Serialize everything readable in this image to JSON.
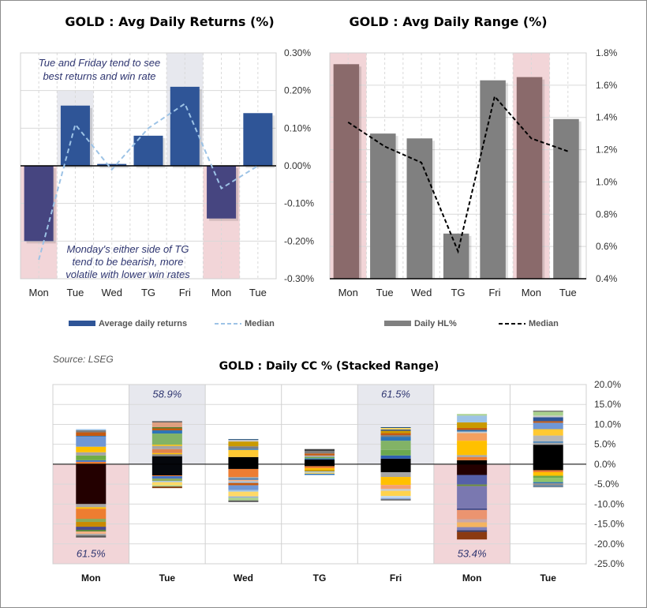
{
  "chart_data": [
    {
      "type": "bar",
      "title": "GOLD : Avg Daily Returns (%)",
      "categories": [
        "Mon",
        "Tue",
        "Wed",
        "TG",
        "Fri",
        "Mon",
        "Tue"
      ],
      "ylim": [
        -0.3,
        0.3
      ],
      "yticks": [
        "0.30%",
        "0.20%",
        "0.10%",
        "0.00%",
        "-0.10%",
        "-0.20%",
        "-0.30%"
      ],
      "ytick_values": [
        0.3,
        0.2,
        0.1,
        0.0,
        -0.1,
        -0.2,
        -0.3
      ],
      "grid": true,
      "legend_placement": "bottom",
      "series": [
        {
          "name": "Average daily returns",
          "type": "bar",
          "values": [
            -0.2,
            0.16,
            0.005,
            0.08,
            0.21,
            -0.14,
            0.14
          ],
          "color": "#2f5597",
          "negative_color": "#464580"
        },
        {
          "name": "Median",
          "type": "line",
          "style": "dashed",
          "values": [
            -0.25,
            0.11,
            -0.01,
            0.1,
            0.165,
            -0.06,
            0.0
          ],
          "color": "#9dc3e6"
        }
      ],
      "highlights": [
        {
          "category_index": 0,
          "range": [
            -0.3,
            0
          ],
          "color": "#f2d5d8"
        },
        {
          "category_index": 1,
          "range": [
            0,
            0.2
          ],
          "color": "#e7e8ee"
        },
        {
          "category_index": 4,
          "range": [
            0,
            0.3
          ],
          "color": "#e7e8ee"
        },
        {
          "category_index": 5,
          "range": [
            -0.3,
            0
          ],
          "color": "#f2d5d8"
        }
      ],
      "annotations": [
        [
          "Tue and Friday tend to see",
          "best returns and win rate"
        ],
        [
          "Monday's either side of TG",
          "tend to be bearish, more",
          "volatile with lower win rates"
        ]
      ]
    },
    {
      "type": "bar",
      "title": "GOLD : Avg Daily Range (%)",
      "categories": [
        "Mon",
        "Tue",
        "Wed",
        "TG",
        "Fri",
        "Mon",
        "Tue"
      ],
      "ylim": [
        0.4,
        1.8
      ],
      "yticks": [
        "1.8%",
        "1.6%",
        "1.4%",
        "1.2%",
        "1.0%",
        "0.8%",
        "0.6%",
        "0.4%"
      ],
      "ytick_values": [
        1.8,
        1.6,
        1.4,
        1.2,
        1.0,
        0.8,
        0.6,
        0.4
      ],
      "grid": true,
      "legend_placement": "bottom",
      "series": [
        {
          "name": "Daily HL%",
          "type": "bar",
          "values": [
            1.73,
            1.3,
            1.27,
            0.68,
            1.63,
            1.65,
            1.39
          ],
          "color": "#808080",
          "highlight_color": "#8a6a6b"
        },
        {
          "name": "Median",
          "type": "line",
          "style": "dashed",
          "values": [
            1.37,
            1.22,
            1.12,
            0.57,
            1.53,
            1.27,
            1.19
          ],
          "color": "#000000"
        }
      ],
      "highlights": [
        {
          "category_index": 0,
          "range": [
            0.4,
            1.8
          ],
          "color": "#f2d5d8"
        },
        {
          "category_index": 5,
          "range": [
            0.4,
            1.8
          ],
          "color": "#f2d5d8"
        }
      ]
    },
    {
      "type": "bar",
      "stacked": true,
      "title": "GOLD : Daily CC % (Stacked Range)",
      "source": "Source: LSEG",
      "categories": [
        "Mon",
        "Tue",
        "Wed",
        "TG",
        "Fri",
        "Mon",
        "Tue"
      ],
      "ylim": [
        -25,
        20
      ],
      "yticks": [
        "20.0%",
        "15.0%",
        "10.0%",
        "5.0%",
        "0.0%",
        "-5.0%",
        "-10.0%",
        "-15.0%",
        "-20.0%",
        "-25.0%"
      ],
      "ytick_values": [
        20,
        15,
        10,
        5,
        0,
        -5,
        -10,
        -15,
        -20,
        -25
      ],
      "grid": true,
      "highlights": [
        {
          "category_index": 0,
          "range": [
            -25,
            0
          ],
          "color": "#f2d5d8",
          "label": "61.5%"
        },
        {
          "category_index": 1,
          "range": [
            0,
            20
          ],
          "color": "#e7e8ee",
          "label": "58.9%"
        },
        {
          "category_index": 4,
          "range": [
            0,
            20
          ],
          "color": "#e7e8ee",
          "label": "61.5%"
        },
        {
          "category_index": 5,
          "range": [
            -25,
            0
          ],
          "color": "#f2d5d8",
          "label": "53.4%"
        }
      ],
      "stacks": [
        {
          "pos": [
            [
              0.6,
              "#ed7d31"
            ],
            [
              0.4,
              "#4472c4"
            ],
            [
              1.2,
              "#70ad47"
            ],
            [
              0.8,
              "#a5a5a5"
            ],
            [
              1.4,
              "#ffc000"
            ],
            [
              2.5,
              "#6f97d6"
            ],
            [
              0.2,
              "#2e75b6"
            ],
            [
              0.9,
              "#c55a11"
            ],
            [
              0.5,
              "#7f7f7f"
            ],
            [
              0.3,
              "#9dc3e6"
            ]
          ],
          "neg": [
            [
              10.0,
              "#230000"
            ],
            [
              0.8,
              "#a5a5a5"
            ],
            [
              0.4,
              "#ffc000"
            ],
            [
              2.5,
              "#ed7d31"
            ],
            [
              0.8,
              "#8faa5a"
            ],
            [
              1.2,
              "#c98a00"
            ],
            [
              0.8,
              "#4a4a8a"
            ],
            [
              0.4,
              "#548235"
            ],
            [
              0.6,
              "#f4b183"
            ],
            [
              0.4,
              "#a5a5a5"
            ],
            [
              0.5,
              "#595959"
            ]
          ]
        },
        {
          "pos": [
            [
              2.0,
              "#05070c"
            ],
            [
              0.5,
              "#7f7f7f"
            ],
            [
              0.3,
              "#ffc000"
            ],
            [
              1.0,
              "#e0834c"
            ],
            [
              0.8,
              "#a5a5a5"
            ],
            [
              0.3,
              "#ffc000"
            ],
            [
              2.8,
              "#82b366"
            ],
            [
              0.8,
              "#2e75b6"
            ],
            [
              0.5,
              "#c55a11"
            ],
            [
              0.3,
              "#548235"
            ],
            [
              1.2,
              "#e0a080"
            ],
            [
              0.3,
              "#595959"
            ]
          ],
          "neg": [
            [
              2.8,
              "#05070c"
            ],
            [
              0.2,
              "#ed7d31"
            ],
            [
              0.6,
              "#4472c4"
            ],
            [
              0.6,
              "#8faa5a"
            ],
            [
              0.3,
              "#9dc3e6"
            ],
            [
              0.8,
              "#ffd966"
            ],
            [
              0.3,
              "#a9d18e"
            ],
            [
              0.4,
              "#843c0c"
            ]
          ]
        },
        {
          "pos": [
            [
              1.8,
              "#000000"
            ],
            [
              1.8,
              "#ffc933"
            ],
            [
              0.3,
              "#2e75b6"
            ],
            [
              0.6,
              "#7f7f7f"
            ],
            [
              1.2,
              "#c99a00"
            ],
            [
              0.4,
              "#c9c9c9"
            ],
            [
              0.2,
              "#1f4e79"
            ]
          ],
          "neg": [
            [
              1.2,
              "#000000"
            ],
            [
              2.0,
              "#ed7d31"
            ],
            [
              0.4,
              "#a5a5a5"
            ],
            [
              0.3,
              "#2e75b6"
            ],
            [
              0.4,
              "#f4b183"
            ],
            [
              0.4,
              "#9dc3e6"
            ],
            [
              0.6,
              "#c55a11"
            ],
            [
              1.2,
              "#6f97d6"
            ],
            [
              0.4,
              "#9dc3e6"
            ],
            [
              1.2,
              "#ffd966"
            ],
            [
              0.3,
              "#8eaadb"
            ],
            [
              0.7,
              "#a9d18e"
            ],
            [
              0.4,
              "#595959"
            ]
          ]
        },
        {
          "pos": [
            [
              1.2,
              "#000000"
            ],
            [
              0.3,
              "#2e75b6"
            ],
            [
              0.3,
              "#70ad47"
            ],
            [
              0.4,
              "#a5a5a5"
            ],
            [
              0.5,
              "#c55a11"
            ],
            [
              0.6,
              "#7f7f7f"
            ],
            [
              0.5,
              "#404040"
            ]
          ],
          "neg": [
            [
              0.5,
              "#000000"
            ],
            [
              0.5,
              "#ed7d31"
            ],
            [
              0.4,
              "#ffc000"
            ],
            [
              0.4,
              "#c99a00"
            ],
            [
              0.3,
              "#9dc3e6"
            ],
            [
              0.3,
              "#ffd966"
            ],
            [
              0.3,
              "#2e75b6"
            ]
          ]
        },
        {
          "pos": [
            [
              1.4,
              "#000000"
            ],
            [
              0.8,
              "#2e5fb0"
            ],
            [
              1.4,
              "#6aa84f"
            ],
            [
              2.3,
              "#82b366"
            ],
            [
              1.0,
              "#2e75b6"
            ],
            [
              0.4,
              "#7f7f7f"
            ],
            [
              0.5,
              "#c55a11"
            ],
            [
              0.6,
              "#c99a00"
            ],
            [
              0.3,
              "#2e5597"
            ],
            [
              0.4,
              "#ffd966"
            ],
            [
              0.2,
              "#1f4e79"
            ]
          ],
          "neg": [
            [
              2.0,
              "#000000"
            ],
            [
              1.2,
              "#a5a5a5"
            ],
            [
              2.0,
              "#ffc000"
            ],
            [
              1.0,
              "#f4a070"
            ],
            [
              0.5,
              "#c9c9c9"
            ],
            [
              1.3,
              "#ffd34d"
            ],
            [
              0.5,
              "#bdd7ee"
            ],
            [
              0.3,
              "#8eaadb"
            ],
            [
              0.3,
              "#595959"
            ]
          ]
        },
        {
          "pos": [
            [
              1.0,
              "#000000"
            ],
            [
              0.8,
              "#ed7d31"
            ],
            [
              0.5,
              "#a5a5a5"
            ],
            [
              3.6,
              "#ffc000"
            ],
            [
              1.9,
              "#f4a060"
            ],
            [
              0.4,
              "#c9c9c9"
            ],
            [
              0.4,
              "#2e75b6"
            ],
            [
              0.5,
              "#c55a11"
            ],
            [
              1.4,
              "#c99a00"
            ],
            [
              1.7,
              "#9dc3e6"
            ],
            [
              0.4,
              "#a9d18e"
            ]
          ],
          "neg": [
            [
              2.7,
              "#230000"
            ],
            [
              2.4,
              "#5560a8"
            ],
            [
              0.4,
              "#6b8e3a"
            ],
            [
              5.6,
              "#7a78b0"
            ],
            [
              0.4,
              "#3f4a8a"
            ],
            [
              2.3,
              "#eb9470"
            ],
            [
              0.8,
              "#c9a8a8"
            ],
            [
              1.2,
              "#f4b460"
            ],
            [
              0.8,
              "#8080b8"
            ],
            [
              0.4,
              "#2f3560"
            ],
            [
              1.9,
              "#8b3a10"
            ]
          ]
        },
        {
          "pos": [
            [
              4.9,
              "#000000"
            ],
            [
              0.5,
              "#a5a5a5"
            ],
            [
              0.3,
              "#2e75b6"
            ],
            [
              1.5,
              "#b7b7b7"
            ],
            [
              1.6,
              "#ffc933"
            ],
            [
              1.6,
              "#6f97d6"
            ],
            [
              0.4,
              "#c55a11"
            ],
            [
              1.0,
              "#2e5597"
            ],
            [
              0.4,
              "#c9c9c9"
            ],
            [
              1.0,
              "#a9d18e"
            ],
            [
              0.2,
              "#404040"
            ]
          ],
          "neg": [
            [
              1.5,
              "#000000"
            ],
            [
              0.5,
              "#ed7d31"
            ],
            [
              0.9,
              "#ffc000"
            ],
            [
              0.5,
              "#6aa84f"
            ],
            [
              1.1,
              "#8fc46a"
            ],
            [
              0.3,
              "#2e75b6"
            ],
            [
              0.6,
              "#8e8e8e"
            ],
            [
              0.2,
              "#2e75b6"
            ],
            [
              0.2,
              "#7f7f7f"
            ]
          ]
        }
      ]
    }
  ]
}
